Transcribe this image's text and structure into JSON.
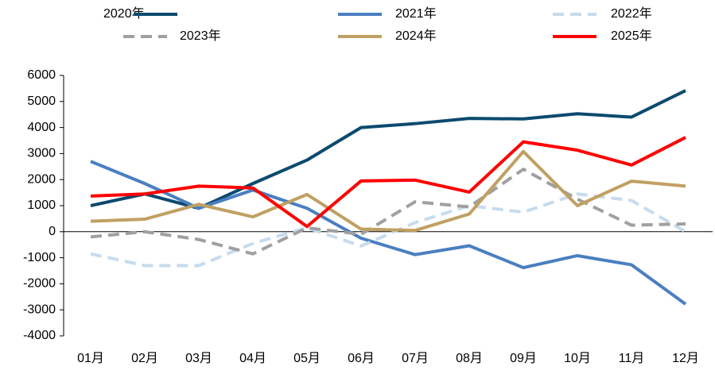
{
  "chart_data": {
    "type": "line",
    "categories": [
      "01月",
      "02月",
      "03月",
      "04月",
      "05月",
      "06月",
      "07月",
      "08月",
      "09月",
      "10月",
      "11月",
      "12月"
    ],
    "series": [
      {
        "name": "2020年",
        "color": "#0b4a6e",
        "dashed": false,
        "values": [
          1000,
          1450,
          900,
          1850,
          2750,
          4000,
          4150,
          4350,
          4330,
          4530,
          4400,
          5420
        ]
      },
      {
        "name": "2021年",
        "color": "#4a7fc1",
        "dashed": false,
        "values": [
          2700,
          1850,
          900,
          1600,
          900,
          -250,
          -880,
          -540,
          -1380,
          -920,
          -1270,
          -2780
        ]
      },
      {
        "name": "2022年",
        "color": "#c6dbef",
        "dashed": true,
        "values": [
          -850,
          -1300,
          -1300,
          -450,
          150,
          -550,
          350,
          1000,
          750,
          1450,
          1200,
          0
        ]
      },
      {
        "name": "2023年",
        "color": "#a0a0a0",
        "dashed": true,
        "values": [
          -200,
          0,
          -300,
          -850,
          150,
          -100,
          1150,
          950,
          2400,
          1250,
          250,
          300
        ]
      },
      {
        "name": "2024年",
        "color": "#c0a062",
        "dashed": false,
        "values": [
          400,
          480,
          1050,
          570,
          1430,
          100,
          50,
          680,
          3080,
          1000,
          1940,
          1750
        ]
      },
      {
        "name": "2025年",
        "color": "#ff0000",
        "dashed": false,
        "values": [
          1370,
          1450,
          1750,
          1680,
          200,
          1950,
          1980,
          1520,
          3450,
          3130,
          2560,
          3620
        ]
      }
    ],
    "ylim": [
      -4000,
      6000
    ],
    "yticks": [
      -4000,
      -3000,
      -2000,
      -1000,
      0,
      1000,
      2000,
      3000,
      4000,
      5000,
      6000
    ],
    "grid": false
  }
}
